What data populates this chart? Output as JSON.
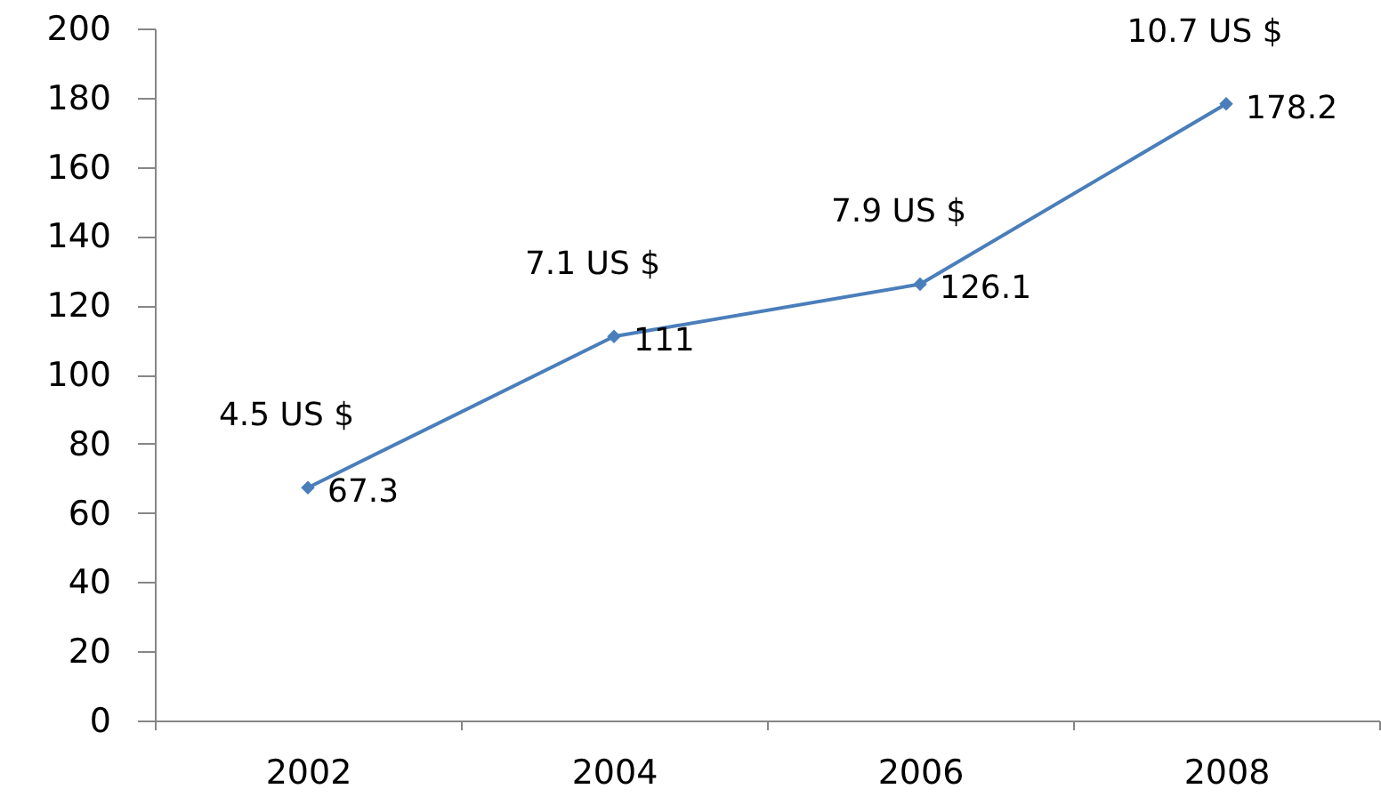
{
  "chart_data": {
    "type": "line",
    "categories": [
      "2002",
      "2004",
      "2006",
      "2008"
    ],
    "series": [
      {
        "color": "#4a7ebb",
        "values": [
          67.3,
          111,
          126.1,
          178.2
        ]
      }
    ],
    "ylim": [
      0,
      200
    ],
    "yticks": [
      0,
      20,
      40,
      60,
      80,
      100,
      120,
      140,
      160,
      180,
      200
    ],
    "grid": false,
    "marker": "diamond",
    "line_style": "solid",
    "data_labels": true,
    "annotations": [
      {
        "text": "4.5 US $",
        "x": "2002",
        "y": 67.3
      },
      {
        "text": "7.1 US $",
        "x": "2004",
        "y": 111
      },
      {
        "text": "7.9 US $",
        "x": "2006",
        "y": 126.1
      },
      {
        "text": "10.7 US $",
        "x": "2008",
        "y": 178.2
      }
    ]
  }
}
